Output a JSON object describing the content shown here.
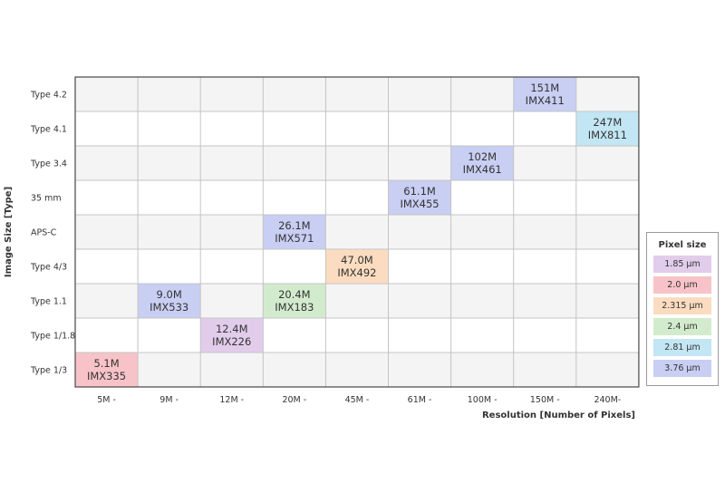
{
  "chart_data": {
    "type": "table",
    "rows": [
      "Type 4.2",
      "Type 4.1",
      "Type 3.4",
      "35 mm",
      "APS-C",
      "Type 4/3",
      "Type 1.1",
      "Type 1/1.8",
      "Type 1/3"
    ],
    "columns": [
      "5M -",
      "9M -",
      "12M -",
      "20M -",
      "45M -",
      "61M -",
      "100M -",
      "150M -",
      "240M-"
    ],
    "ylabel": "Image Size [Type]",
    "xlabel": "Resolution [Number of Pixels]",
    "cells": [
      {
        "row": 8,
        "col": 0,
        "resolution": "5.1M",
        "sensor": "IMX335",
        "pixel_size": "2.0 µm"
      },
      {
        "row": 6,
        "col": 1,
        "resolution": "9.0M",
        "sensor": "IMX533",
        "pixel_size": "3.76 µm"
      },
      {
        "row": 7,
        "col": 2,
        "resolution": "12.4M",
        "sensor": "IMX226",
        "pixel_size": "1.85 µm"
      },
      {
        "row": 6,
        "col": 3,
        "resolution": "20.4M",
        "sensor": "IMX183",
        "pixel_size": "2.4 µm"
      },
      {
        "row": 4,
        "col": 3,
        "resolution": "26.1M",
        "sensor": "IMX571",
        "pixel_size": "3.76 µm"
      },
      {
        "row": 5,
        "col": 4,
        "resolution": "47.0M",
        "sensor": "IMX492",
        "pixel_size": "2.315 µm"
      },
      {
        "row": 3,
        "col": 5,
        "resolution": "61.1M",
        "sensor": "IMX455",
        "pixel_size": "3.76 µm"
      },
      {
        "row": 2,
        "col": 6,
        "resolution": "102M",
        "sensor": "IMX461",
        "pixel_size": "3.76 µm"
      },
      {
        "row": 0,
        "col": 7,
        "resolution": "151M",
        "sensor": "IMX411",
        "pixel_size": "3.76 µm"
      },
      {
        "row": 1,
        "col": 8,
        "resolution": "247M",
        "sensor": "IMX811",
        "pixel_size": "2.81 µm"
      }
    ],
    "legend": {
      "title": "Pixel size",
      "position": "right",
      "items": [
        {
          "label": "1.85 µm",
          "color": "#e2cceb"
        },
        {
          "label": "2.0 µm",
          "color": "#f7c3c8"
        },
        {
          "label": "2.315 µm",
          "color": "#fbdcc0"
        },
        {
          "label": "2.4 µm",
          "color": "#d3ebcd"
        },
        {
          "label": "2.81 µm",
          "color": "#c2e6f3"
        },
        {
          "label": "3.76 µm",
          "color": "#c9cef3"
        }
      ]
    },
    "stripe_colors": [
      "#f4f4f4",
      "#ffffff"
    ],
    "grid_color": "#c4c4c4"
  }
}
